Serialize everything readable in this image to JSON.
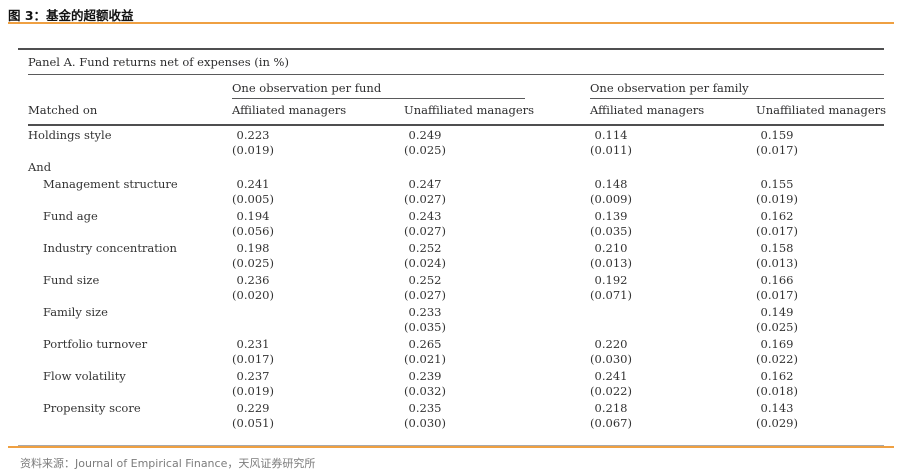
{
  "page": {
    "title": "图 3：基金的超额收益",
    "source_note": "资料来源：Journal of Empirical Finance，天风证券研究所"
  },
  "colors": {
    "accent_orange": "#efa042",
    "table_rule_dark": "#4f4f50",
    "footer_gray": "#7c7c7c"
  },
  "table": {
    "panel_title": "Panel A. Fund returns net of expenses (in %)",
    "row_header": "Matched on",
    "groups": [
      {
        "label": "One observation per fund",
        "columns": [
          "Affiliated managers",
          "Unaffiliated managers"
        ]
      },
      {
        "label": "One observation per family",
        "columns": [
          "Affiliated managers",
          "Unaffiliated managers"
        ]
      }
    ],
    "rows": [
      {
        "label": "Holdings style",
        "indent": false,
        "section": false,
        "cells": [
          {
            "value": "0.223",
            "se": "(0.019)"
          },
          {
            "value": "0.249",
            "se": "(0.025)"
          },
          {
            "value": "0.114",
            "se": "(0.011)"
          },
          {
            "value": "0.159",
            "se": "(0.017)"
          }
        ]
      },
      {
        "label": "And",
        "indent": false,
        "section": true,
        "cells": [
          null,
          null,
          null,
          null
        ]
      },
      {
        "label": "Management structure",
        "indent": true,
        "section": false,
        "cells": [
          {
            "value": "0.241",
            "se": "(0.005)"
          },
          {
            "value": "0.247",
            "se": "(0.027)"
          },
          {
            "value": "0.148",
            "se": "(0.009)"
          },
          {
            "value": "0.155",
            "se": "(0.019)"
          }
        ]
      },
      {
        "label": "Fund age",
        "indent": true,
        "section": false,
        "cells": [
          {
            "value": "0.194",
            "se": "(0.056)"
          },
          {
            "value": "0.243",
            "se": "(0.027)"
          },
          {
            "value": "0.139",
            "se": "(0.035)"
          },
          {
            "value": "0.162",
            "se": "(0.017)"
          }
        ]
      },
      {
        "label": "Industry concentration",
        "indent": true,
        "section": false,
        "cells": [
          {
            "value": "0.198",
            "se": "(0.025)"
          },
          {
            "value": "0.252",
            "se": "(0.024)"
          },
          {
            "value": "0.210",
            "se": "(0.013)"
          },
          {
            "value": "0.158",
            "se": "(0.013)"
          }
        ]
      },
      {
        "label": "Fund size",
        "indent": true,
        "section": false,
        "cells": [
          {
            "value": "0.236",
            "se": "(0.020)"
          },
          {
            "value": "0.252",
            "se": "(0.027)"
          },
          {
            "value": "0.192",
            "se": "(0.071)"
          },
          {
            "value": "0.166",
            "se": "(0.017)"
          }
        ]
      },
      {
        "label": "Family size",
        "indent": true,
        "section": false,
        "cells": [
          null,
          {
            "value": "0.233",
            "se": "(0.035)"
          },
          null,
          {
            "value": "0.149",
            "se": "(0.025)"
          }
        ]
      },
      {
        "label": "Portfolio turnover",
        "indent": true,
        "section": false,
        "cells": [
          {
            "value": "0.231",
            "se": "(0.017)"
          },
          {
            "value": "0.265",
            "se": "(0.021)"
          },
          {
            "value": "0.220",
            "se": "(0.030)"
          },
          {
            "value": "0.169",
            "se": "(0.022)"
          }
        ]
      },
      {
        "label": "Flow volatility",
        "indent": true,
        "section": false,
        "cells": [
          {
            "value": "0.237",
            "se": "(0.019)"
          },
          {
            "value": "0.239",
            "se": "(0.032)"
          },
          {
            "value": "0.241",
            "se": "(0.022)"
          },
          {
            "value": "0.162",
            "se": "(0.018)"
          }
        ]
      },
      {
        "label": "Propensity score",
        "indent": true,
        "section": false,
        "cells": [
          {
            "value": "0.229",
            "se": "(0.051)"
          },
          {
            "value": "0.235",
            "se": "(0.030)"
          },
          {
            "value": "0.218",
            "se": "(0.067)"
          },
          {
            "value": "0.143",
            "se": "(0.029)"
          }
        ]
      }
    ]
  }
}
